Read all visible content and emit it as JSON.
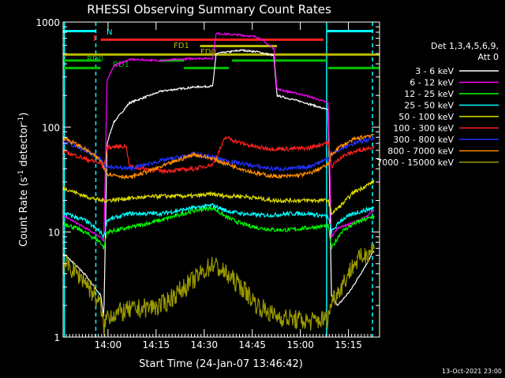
{
  "chart_data": {
    "type": "line",
    "title": "RHESSI Observing Summary Count Rates",
    "xlabel": "Start Time (24-Jan-07 13:46:42)",
    "ylabel": "Count Rate (s⁻¹ detector⁻¹)",
    "ylabel_parts": {
      "pre": "Count Rate (s",
      "sup": "-1",
      "mid": " detector",
      "sup2": "-1",
      "post": ")"
    },
    "y_scale": "log",
    "ylim": [
      1,
      1000
    ],
    "xlim_minutes": [
      -0.7,
      98
    ],
    "x_ticks": [
      {
        "label": "14:00",
        "m": 13.3
      },
      {
        "label": "14:15",
        "m": 28.3
      },
      {
        "label": "14:30",
        "m": 43.3
      },
      {
        "label": "14:45",
        "m": 58.3
      },
      {
        "label": "15:00",
        "m": 73.3
      },
      {
        "label": "15:15",
        "m": 88.3
      }
    ],
    "y_ticks": [
      {
        "label": "1",
        "v": 1
      },
      {
        "label": "10",
        "v": 10
      },
      {
        "label": "100",
        "v": 100
      },
      {
        "label": "1000",
        "v": 1000
      }
    ],
    "legend_header": [
      "Det 1,3,4,5,6,9,",
      "Att 0"
    ],
    "footer_date": "13-Oct-2021 23:00",
    "series": [
      {
        "name": "3 - 6 keV",
        "color": "#ffffff",
        "x": [
          0,
          6,
          11,
          12,
          13,
          15,
          20,
          30,
          40,
          46,
          47,
          55,
          60,
          65,
          66,
          75,
          82,
          83,
          85,
          89,
          94,
          96
        ],
        "y": [
          6,
          4,
          2.5,
          1.5,
          70,
          110,
          170,
          220,
          240,
          245,
          500,
          540,
          520,
          480,
          200,
          170,
          145,
          2.5,
          2,
          2.8,
          5,
          6.5
        ]
      },
      {
        "name": "6 - 12 keV",
        "color": "#ff00ff",
        "x": [
          0,
          6,
          11,
          12,
          13,
          15,
          20,
          30,
          40,
          46,
          47,
          55,
          60,
          65,
          66,
          75,
          82,
          83,
          85,
          89,
          94,
          96
        ],
        "y": [
          14,
          11,
          9,
          8,
          280,
          380,
          440,
          430,
          450,
          450,
          780,
          750,
          720,
          560,
          230,
          200,
          170,
          9,
          11,
          12,
          14,
          16
        ]
      },
      {
        "name": "12 - 25 keV",
        "color": "#00ff00",
        "x": [
          0,
          6,
          11,
          12,
          13,
          20,
          30,
          40,
          46,
          50,
          55,
          60,
          65,
          70,
          76,
          82,
          83,
          86,
          90,
          96
        ],
        "y": [
          12,
          10,
          8,
          7,
          10,
          11,
          13,
          16,
          17,
          14,
          12,
          11,
          10.5,
          10.5,
          11,
          11.5,
          7,
          10,
          12,
          14
        ]
      },
      {
        "name": "25 - 50 keV",
        "color": "#00ffff",
        "x": [
          0,
          6,
          11,
          12,
          13,
          20,
          30,
          40,
          46,
          50,
          55,
          60,
          65,
          70,
          76,
          82,
          83,
          86,
          90,
          96
        ],
        "y": [
          15,
          13,
          10,
          9,
          13,
          15,
          15,
          17,
          18,
          16,
          15,
          14.5,
          14.5,
          15,
          15,
          14,
          10,
          13,
          15,
          17
        ]
      },
      {
        "name": "50 - 100 keV",
        "color": "#dddd00",
        "x": [
          0,
          6,
          11,
          12,
          13,
          20,
          30,
          40,
          46,
          50,
          55,
          60,
          65,
          70,
          76,
          82,
          83,
          86,
          90,
          96
        ],
        "y": [
          26,
          22,
          20,
          20,
          20,
          21,
          22,
          22,
          23,
          22,
          22,
          21,
          20,
          20,
          20,
          20,
          15,
          18,
          24,
          30
        ]
      },
      {
        "name": "100 - 300 keV",
        "color": "#ff2020",
        "x": [
          0,
          6,
          11,
          12,
          13,
          19,
          20,
          30,
          40,
          46,
          50,
          55,
          60,
          65,
          70,
          76,
          82,
          83,
          86,
          90,
          96
        ],
        "y": [
          58,
          50,
          45,
          40,
          64,
          66,
          42,
          38,
          40,
          44,
          80,
          70,
          64,
          62,
          62,
          63,
          72,
          42,
          52,
          58,
          65
        ]
      },
      {
        "name": "300 - 800 keV",
        "color": "#2030ff",
        "x": [
          0,
          6,
          11,
          12,
          13,
          20,
          30,
          40,
          46,
          50,
          55,
          60,
          65,
          70,
          76,
          82,
          83,
          86,
          90,
          96
        ],
        "y": [
          72,
          60,
          50,
          45,
          42,
          40,
          48,
          55,
          52,
          48,
          45,
          42,
          40,
          40,
          42,
          50,
          55,
          62,
          70,
          78
        ]
      },
      {
        "name": "800 - 7000 keV",
        "color": "#ff8c00",
        "x": [
          0,
          6,
          11,
          12,
          13,
          20,
          30,
          40,
          46,
          50,
          55,
          60,
          65,
          70,
          76,
          82,
          83,
          86,
          90,
          96
        ],
        "y": [
          78,
          62,
          48,
          42,
          36,
          33,
          42,
          55,
          50,
          45,
          40,
          36,
          34,
          34,
          36,
          44,
          55,
          66,
          76,
          85
        ]
      },
      {
        "name": "7000 - 15000 keV",
        "color": "#999900",
        "x": [
          0,
          6,
          11,
          12,
          13,
          20,
          30,
          40,
          46,
          50,
          55,
          60,
          65,
          70,
          76,
          82,
          83,
          86,
          90,
          96
        ],
        "y": [
          5,
          3.5,
          2,
          1.2,
          1.6,
          1.8,
          2,
          3.5,
          5,
          4,
          3,
          2,
          1.6,
          1.5,
          1.4,
          1.5,
          2.2,
          3,
          5,
          7
        ]
      }
    ],
    "annotations": [
      {
        "text": "N",
        "color": "#00ffff"
      },
      {
        "text": "F",
        "color": "#ff2020"
      },
      {
        "text": "FD1",
        "color": "#bbbb00"
      },
      {
        "text": "FD0",
        "color": "#bbbb00"
      },
      {
        "text": "RD0",
        "color": "#00c000"
      },
      {
        "text": "RD1",
        "color": "#00c000"
      }
    ],
    "bars": [
      {
        "name": "night-bar",
        "color": "#00ffff",
        "level": 820,
        "ranges": [
          [
            -0.7,
            9.5
          ],
          [
            81.5,
            96
          ]
        ]
      },
      {
        "name": "flare-bar",
        "color": "#ff2020",
        "level": 680,
        "ranges": [
          [
            11,
            80.5
          ]
        ]
      },
      {
        "name": "decimation-bar-1",
        "color": "#bbbb00",
        "level": 590,
        "ranges": [
          [
            42,
            66
          ]
        ]
      },
      {
        "name": "decimation-bar-0",
        "color": "#bbbb00",
        "level": 490,
        "ranges": [
          [
            -0.7,
            98
          ]
        ]
      },
      {
        "name": "rear-decimation-bar-0",
        "color": "#00c000",
        "level": 430,
        "ranges": [
          [
            -0.7,
            11
          ],
          [
            29.5,
            37
          ],
          [
            52,
            81.5
          ]
        ]
      },
      {
        "name": "rear-decimation-bar-1",
        "color": "#00c000",
        "level": 365,
        "ranges": [
          [
            -0.7,
            11
          ],
          [
            37,
            51
          ],
          [
            82,
            98
          ]
        ]
      }
    ],
    "vlines": [
      {
        "name": "night-start-line",
        "color": "#00ffff",
        "m": -0.3,
        "dashed": false
      },
      {
        "name": "night-end-line",
        "color": "#00ffff",
        "m": 9.5,
        "dashed": true
      },
      {
        "name": "night-start-line-2",
        "color": "#00ffff",
        "m": 81.5,
        "dashed": false
      },
      {
        "name": "night-end-line-2",
        "color": "#00ffff",
        "m": 95.8,
        "dashed": true
      }
    ],
    "grid": false,
    "legend_position": "right"
  }
}
